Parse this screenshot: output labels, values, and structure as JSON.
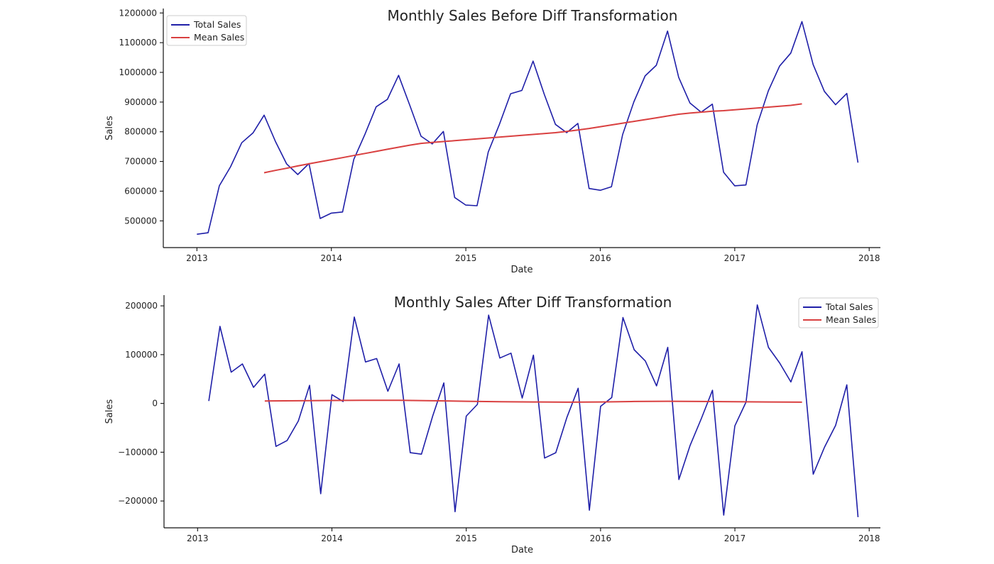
{
  "chart_data": [
    {
      "type": "line",
      "title": "Monthly Sales Before Diff Transformation",
      "xlabel": "Date",
      "ylabel": "Sales",
      "xlim": [
        "2012-10",
        "2018-02"
      ],
      "ylim": [
        410000,
        1215000
      ],
      "xticks": [
        "2013",
        "2014",
        "2015",
        "2016",
        "2017",
        "2018"
      ],
      "yticks": [
        "500000",
        "600000",
        "700000",
        "800000",
        "900000",
        "1000000",
        "1100000",
        "1200000"
      ],
      "legend_position": "top-left",
      "grid": false,
      "series": [
        {
          "name": "Total Sales",
          "color": "#1f1fa8",
          "points": [
            {
              "x": "2013-01",
              "y": 455000
            },
            {
              "x": "2013-02",
              "y": 460000
            },
            {
              "x": "2013-03",
              "y": 618000
            },
            {
              "x": "2013-04",
              "y": 682000
            },
            {
              "x": "2013-05",
              "y": 763000
            },
            {
              "x": "2013-06",
              "y": 796000
            },
            {
              "x": "2013-07",
              "y": 856000
            },
            {
              "x": "2013-08",
              "y": 768000
            },
            {
              "x": "2013-09",
              "y": 692000
            },
            {
              "x": "2013-10",
              "y": 656000
            },
            {
              "x": "2013-11",
              "y": 693000
            },
            {
              "x": "2013-12",
              "y": 508000
            },
            {
              "x": "2014-01",
              "y": 526000
            },
            {
              "x": "2014-02",
              "y": 530000
            },
            {
              "x": "2014-03",
              "y": 707000
            },
            {
              "x": "2014-04",
              "y": 792000
            },
            {
              "x": "2014-05",
              "y": 884000
            },
            {
              "x": "2014-06",
              "y": 909000
            },
            {
              "x": "2014-07",
              "y": 990000
            },
            {
              "x": "2014-08",
              "y": 889000
            },
            {
              "x": "2014-09",
              "y": 785000
            },
            {
              "x": "2014-10",
              "y": 759000
            },
            {
              "x": "2014-11",
              "y": 801000
            },
            {
              "x": "2014-12",
              "y": 579000
            },
            {
              "x": "2015-01",
              "y": 553000
            },
            {
              "x": "2015-02",
              "y": 551000
            },
            {
              "x": "2015-03",
              "y": 732000
            },
            {
              "x": "2015-04",
              "y": 825000
            },
            {
              "x": "2015-05",
              "y": 928000
            },
            {
              "x": "2015-06",
              "y": 939000
            },
            {
              "x": "2015-07",
              "y": 1038000
            },
            {
              "x": "2015-08",
              "y": 926000
            },
            {
              "x": "2015-09",
              "y": 825000
            },
            {
              "x": "2015-10",
              "y": 797000
            },
            {
              "x": "2015-11",
              "y": 828000
            },
            {
              "x": "2015-12",
              "y": 609000
            },
            {
              "x": "2016-01",
              "y": 603000
            },
            {
              "x": "2016-02",
              "y": 615000
            },
            {
              "x": "2016-03",
              "y": 791000
            },
            {
              "x": "2016-04",
              "y": 901000
            },
            {
              "x": "2016-05",
              "y": 988000
            },
            {
              "x": "2016-06",
              "y": 1024000
            },
            {
              "x": "2016-07",
              "y": 1139000
            },
            {
              "x": "2016-08",
              "y": 983000
            },
            {
              "x": "2016-09",
              "y": 897000
            },
            {
              "x": "2016-10",
              "y": 866000
            },
            {
              "x": "2016-11",
              "y": 893000
            },
            {
              "x": "2016-12",
              "y": 664000
            },
            {
              "x": "2017-01",
              "y": 618000
            },
            {
              "x": "2017-02",
              "y": 621000
            },
            {
              "x": "2017-03",
              "y": 823000
            },
            {
              "x": "2017-04",
              "y": 938000
            },
            {
              "x": "2017-05",
              "y": 1021000
            },
            {
              "x": "2017-06",
              "y": 1065000
            },
            {
              "x": "2017-07",
              "y": 1171000
            },
            {
              "x": "2017-08",
              "y": 1026000
            },
            {
              "x": "2017-09",
              "y": 936000
            },
            {
              "x": "2017-10",
              "y": 891000
            },
            {
              "x": "2017-11",
              "y": 929000
            },
            {
              "x": "2017-12",
              "y": 696000
            }
          ]
        },
        {
          "name": "Mean Sales",
          "color": "#d94040",
          "points": [
            {
              "x": "2013-07",
              "y": 662000
            },
            {
              "x": "2013-08",
              "y": 670000
            },
            {
              "x": "2013-09",
              "y": 677000
            },
            {
              "x": "2013-10",
              "y": 685000
            },
            {
              "x": "2013-11",
              "y": 692000
            },
            {
              "x": "2013-12",
              "y": 699000
            },
            {
              "x": "2014-01",
              "y": 706000
            },
            {
              "x": "2014-02",
              "y": 713000
            },
            {
              "x": "2014-03",
              "y": 720000
            },
            {
              "x": "2014-04",
              "y": 727000
            },
            {
              "x": "2014-05",
              "y": 734000
            },
            {
              "x": "2014-06",
              "y": 741000
            },
            {
              "x": "2014-07",
              "y": 748000
            },
            {
              "x": "2014-08",
              "y": 755000
            },
            {
              "x": "2014-09",
              "y": 761000
            },
            {
              "x": "2014-10",
              "y": 764000
            },
            {
              "x": "2014-11",
              "y": 767000
            },
            {
              "x": "2014-12",
              "y": 770000
            },
            {
              "x": "2015-01",
              "y": 773000
            },
            {
              "x": "2015-02",
              "y": 776000
            },
            {
              "x": "2015-03",
              "y": 779000
            },
            {
              "x": "2015-04",
              "y": 782000
            },
            {
              "x": "2015-05",
              "y": 785000
            },
            {
              "x": "2015-06",
              "y": 788000
            },
            {
              "x": "2015-07",
              "y": 791000
            },
            {
              "x": "2015-08",
              "y": 794000
            },
            {
              "x": "2015-09",
              "y": 797000
            },
            {
              "x": "2015-10",
              "y": 801000
            },
            {
              "x": "2015-11",
              "y": 806000
            },
            {
              "x": "2015-12",
              "y": 811000
            },
            {
              "x": "2016-01",
              "y": 817000
            },
            {
              "x": "2016-02",
              "y": 823000
            },
            {
              "x": "2016-03",
              "y": 829000
            },
            {
              "x": "2016-04",
              "y": 835000
            },
            {
              "x": "2016-05",
              "y": 841000
            },
            {
              "x": "2016-06",
              "y": 847000
            },
            {
              "x": "2016-07",
              "y": 853000
            },
            {
              "x": "2016-08",
              "y": 859000
            },
            {
              "x": "2016-09",
              "y": 863000
            },
            {
              "x": "2016-10",
              "y": 866000
            },
            {
              "x": "2016-11",
              "y": 869000
            },
            {
              "x": "2016-12",
              "y": 871000
            },
            {
              "x": "2017-01",
              "y": 874000
            },
            {
              "x": "2017-02",
              "y": 877000
            },
            {
              "x": "2017-03",
              "y": 880000
            },
            {
              "x": "2017-04",
              "y": 883000
            },
            {
              "x": "2017-05",
              "y": 886000
            },
            {
              "x": "2017-06",
              "y": 889000
            },
            {
              "x": "2017-07",
              "y": 894000
            }
          ]
        }
      ]
    },
    {
      "type": "line",
      "title": "Monthly Sales After Diff Transformation",
      "xlabel": "Date",
      "ylabel": "Sales",
      "xlim": [
        "2012-10",
        "2018-02"
      ],
      "ylim": [
        -255000,
        222000
      ],
      "xticks": [
        "2013",
        "2014",
        "2015",
        "2016",
        "2017",
        "2018"
      ],
      "yticks": [
        "−200000",
        "−100000",
        "0",
        "100000",
        "200000"
      ],
      "legend_position": "top-right",
      "grid": false,
      "series": [
        {
          "name": "Total Sales",
          "color": "#1f1fa8",
          "points": [
            {
              "x": "2013-02",
              "y": 5000
            },
            {
              "x": "2013-03",
              "y": 158000
            },
            {
              "x": "2013-04",
              "y": 64000
            },
            {
              "x": "2013-05",
              "y": 81000
            },
            {
              "x": "2013-06",
              "y": 33000
            },
            {
              "x": "2013-07",
              "y": 60000
            },
            {
              "x": "2013-08",
              "y": -88000
            },
            {
              "x": "2013-09",
              "y": -76000
            },
            {
              "x": "2013-10",
              "y": -36000
            },
            {
              "x": "2013-11",
              "y": 37000
            },
            {
              "x": "2013-12",
              "y": -185000
            },
            {
              "x": "2014-01",
              "y": 18000
            },
            {
              "x": "2014-02",
              "y": 4000
            },
            {
              "x": "2014-03",
              "y": 177000
            },
            {
              "x": "2014-04",
              "y": 85000
            },
            {
              "x": "2014-05",
              "y": 92000
            },
            {
              "x": "2014-06",
              "y": 25000
            },
            {
              "x": "2014-07",
              "y": 81000
            },
            {
              "x": "2014-08",
              "y": -101000
            },
            {
              "x": "2014-09",
              "y": -104000
            },
            {
              "x": "2014-10",
              "y": -26000
            },
            {
              "x": "2014-11",
              "y": 42000
            },
            {
              "x": "2014-12",
              "y": -222000
            },
            {
              "x": "2015-01",
              "y": -26000
            },
            {
              "x": "2015-02",
              "y": -2000
            },
            {
              "x": "2015-03",
              "y": 181000
            },
            {
              "x": "2015-04",
              "y": 93000
            },
            {
              "x": "2015-05",
              "y": 103000
            },
            {
              "x": "2015-06",
              "y": 11000
            },
            {
              "x": "2015-07",
              "y": 99000
            },
            {
              "x": "2015-08",
              "y": -112000
            },
            {
              "x": "2015-09",
              "y": -101000
            },
            {
              "x": "2015-10",
              "y": -28000
            },
            {
              "x": "2015-11",
              "y": 31000
            },
            {
              "x": "2015-12",
              "y": -219000
            },
            {
              "x": "2016-01",
              "y": -6000
            },
            {
              "x": "2016-02",
              "y": 12000
            },
            {
              "x": "2016-03",
              "y": 176000
            },
            {
              "x": "2016-04",
              "y": 110000
            },
            {
              "x": "2016-05",
              "y": 87000
            },
            {
              "x": "2016-06",
              "y": 36000
            },
            {
              "x": "2016-07",
              "y": 115000
            },
            {
              "x": "2016-08",
              "y": -156000
            },
            {
              "x": "2016-09",
              "y": -86000
            },
            {
              "x": "2016-10",
              "y": -31000
            },
            {
              "x": "2016-11",
              "y": 27000
            },
            {
              "x": "2016-12",
              "y": -229000
            },
            {
              "x": "2017-01",
              "y": -46000
            },
            {
              "x": "2017-02",
              "y": 3000
            },
            {
              "x": "2017-03",
              "y": 202000
            },
            {
              "x": "2017-04",
              "y": 115000
            },
            {
              "x": "2017-05",
              "y": 83000
            },
            {
              "x": "2017-06",
              "y": 44000
            },
            {
              "x": "2017-07",
              "y": 106000
            },
            {
              "x": "2017-08",
              "y": -145000
            },
            {
              "x": "2017-09",
              "y": -90000
            },
            {
              "x": "2017-10",
              "y": -45000
            },
            {
              "x": "2017-11",
              "y": 38000
            },
            {
              "x": "2017-12",
              "y": -233000
            }
          ]
        },
        {
          "name": "Mean Sales",
          "color": "#d94040",
          "points": [
            {
              "x": "2013-07",
              "y": 5000
            },
            {
              "x": "2013-10",
              "y": 5500
            },
            {
              "x": "2014-01",
              "y": 6000
            },
            {
              "x": "2014-04",
              "y": 6500
            },
            {
              "x": "2014-07",
              "y": 6500
            },
            {
              "x": "2014-10",
              "y": 5500
            },
            {
              "x": "2015-01",
              "y": 4500
            },
            {
              "x": "2015-04",
              "y": 3500
            },
            {
              "x": "2015-07",
              "y": 3000
            },
            {
              "x": "2015-10",
              "y": 2500
            },
            {
              "x": "2016-01",
              "y": 3000
            },
            {
              "x": "2016-04",
              "y": 4000
            },
            {
              "x": "2016-07",
              "y": 4500
            },
            {
              "x": "2016-10",
              "y": 4000
            },
            {
              "x": "2017-01",
              "y": 3500
            },
            {
              "x": "2017-04",
              "y": 3000
            },
            {
              "x": "2017-07",
              "y": 2500
            }
          ]
        }
      ]
    }
  ]
}
